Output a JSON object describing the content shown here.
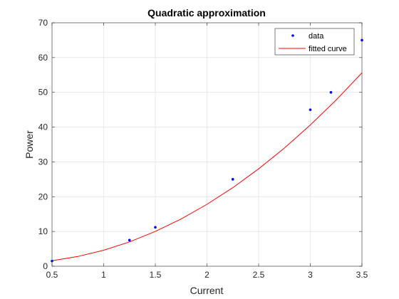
{
  "chart_data": {
    "type": "scatter",
    "title": "Quadratic approximation",
    "xlabel": "Current",
    "ylabel": "Power",
    "xlim": [
      0.5,
      3.5
    ],
    "ylim": [
      0,
      70
    ],
    "xticks": [
      0.5,
      1,
      1.5,
      2,
      2.5,
      3,
      3.5
    ],
    "yticks": [
      0,
      10,
      20,
      30,
      40,
      50,
      60,
      70
    ],
    "grid": true,
    "legend_position": "top-right",
    "series": [
      {
        "name": "data",
        "kind": "scatter",
        "color": "#0000ff",
        "x": [
          0.5,
          1.25,
          1.5,
          2.25,
          3.0,
          3.2,
          3.5
        ],
        "y": [
          1.5,
          7.5,
          11.2,
          25.0,
          45.0,
          50.0,
          65.0
        ]
      },
      {
        "name": "fitted curve",
        "kind": "line",
        "color": "#ff0000",
        "x": [
          0.5,
          0.75,
          1.0,
          1.25,
          1.5,
          1.75,
          2.0,
          2.25,
          2.5,
          2.75,
          3.0,
          3.25,
          3.5
        ],
        "y": [
          1.6,
          2.8,
          4.6,
          7.0,
          10.0,
          13.6,
          17.8,
          22.6,
          28.0,
          34.0,
          40.6,
          47.8,
          55.6
        ]
      }
    ]
  }
}
